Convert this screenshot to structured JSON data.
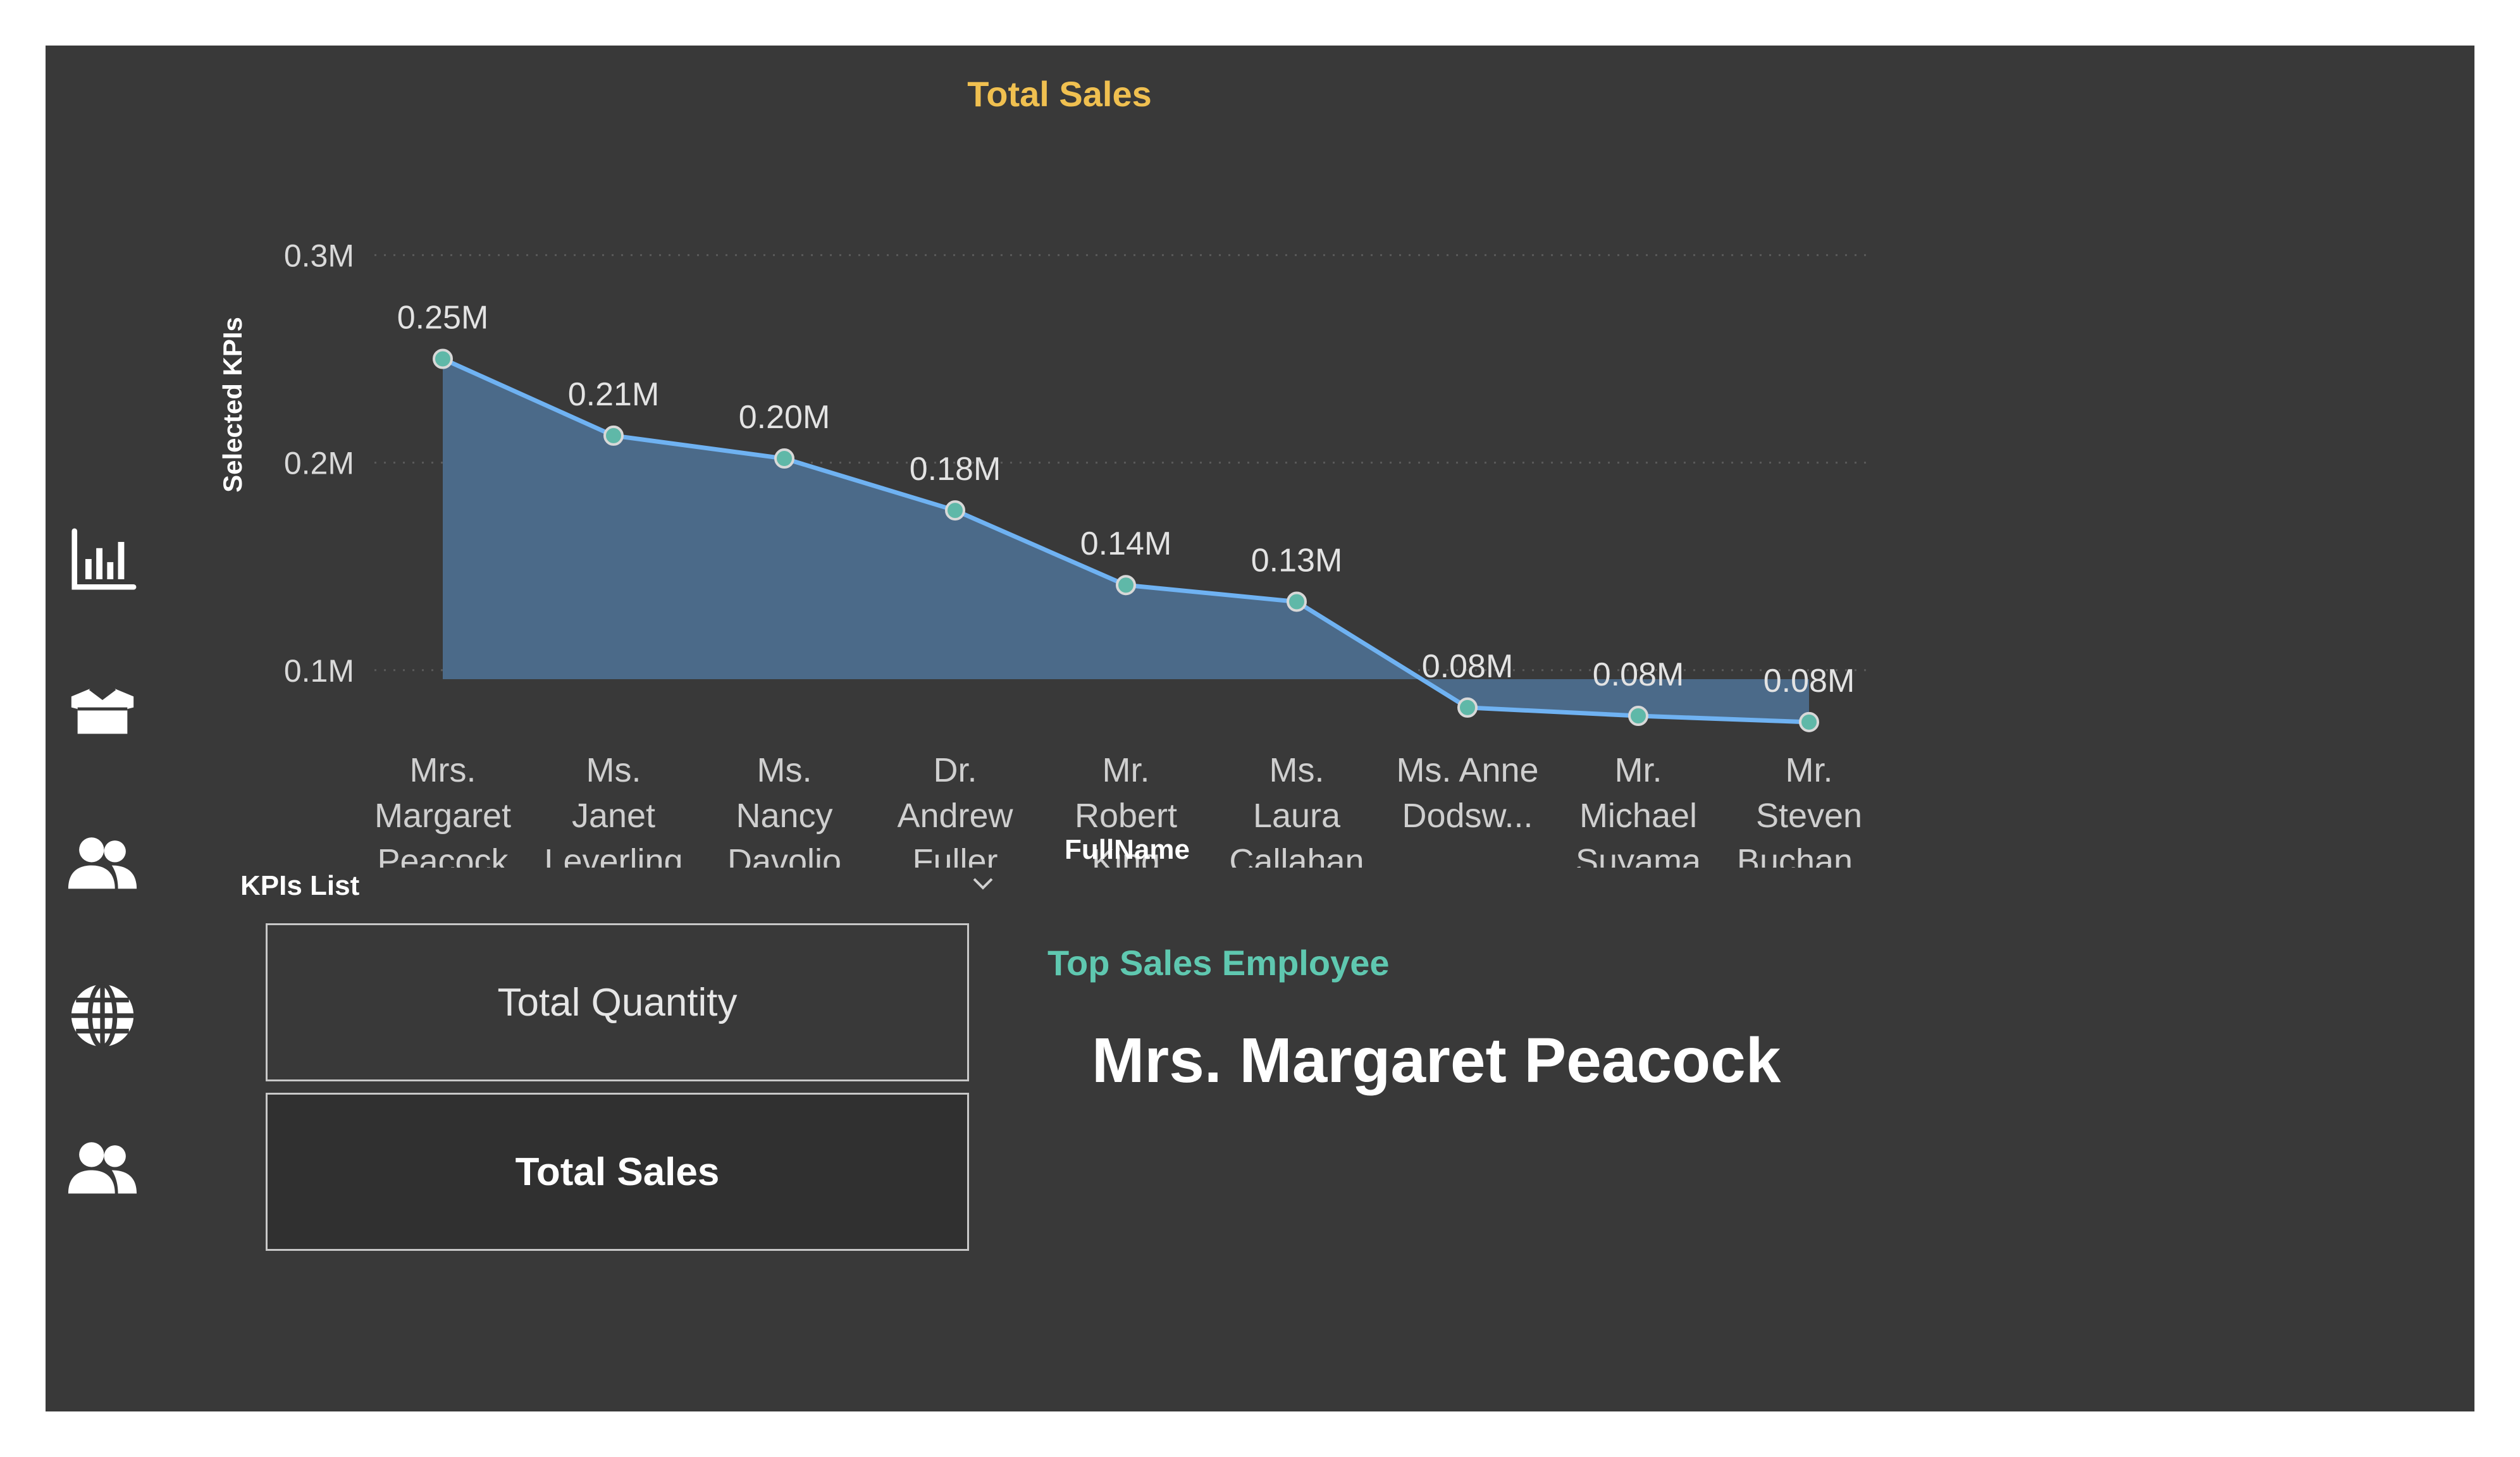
{
  "nav": {
    "items": [
      {
        "icon": "bar-chart-icon"
      },
      {
        "icon": "box-icon"
      },
      {
        "icon": "users-icon"
      },
      {
        "icon": "globe-icon"
      },
      {
        "icon": "users-icon"
      }
    ]
  },
  "colors": {
    "background": "#393939",
    "chart_title": "#f0c050",
    "line": "#6fb2f2",
    "area": "#4b6a89",
    "marker": "#5fb8a8",
    "accent_teal": "#5fc8b0"
  },
  "chart_data": {
    "type": "area",
    "title": "Total Sales",
    "xlabel": "FullName",
    "ylabel": "Selected KPIs",
    "ylim": [
      0.05,
      0.3
    ],
    "yticks": [
      0.1,
      0.2,
      0.3
    ],
    "ytick_labels": [
      "0.1M",
      "0.2M",
      "0.3M"
    ],
    "grid": true,
    "categories": [
      "Mrs. Margaret Peacock",
      "Ms. Janet Leverling",
      "Ms. Nancy Davolio",
      "Dr. Andrew Fuller",
      "Mr. Robert King",
      "Ms. Laura Callahan",
      "Ms. Anne Dodsw...",
      "Mr. Michael Suyama",
      "Mr. Steven Buchan..."
    ],
    "category_lines": [
      [
        "Mrs.",
        "Margaret",
        "Peacock"
      ],
      [
        "Ms.",
        "Janet",
        "Leverling"
      ],
      [
        "Ms.",
        "Nancy",
        "Davolio"
      ],
      [
        "Dr.",
        "Andrew",
        "Fuller"
      ],
      [
        "Mr.",
        "Robert",
        "King"
      ],
      [
        "Ms.",
        "Laura",
        "Callahan"
      ],
      [
        "Ms. Anne",
        "Dodsw..."
      ],
      [
        "Mr.",
        "Michael",
        "Suyama"
      ],
      [
        "Mr.",
        "Steven",
        "Buchan..."
      ]
    ],
    "values": [
      0.25,
      0.213,
      0.202,
      0.177,
      0.141,
      0.133,
      0.082,
      0.078,
      0.075
    ],
    "data_labels": [
      "0.25M",
      "0.21M",
      "0.20M",
      "0.18M",
      "0.14M",
      "0.13M",
      "0.08M",
      "0.08M",
      "0.08M"
    ]
  },
  "kpis": {
    "header": "KPIs List",
    "items": [
      {
        "label": "Total Quantity",
        "selected": false
      },
      {
        "label": "Total Sales",
        "selected": true
      }
    ]
  },
  "top_employee": {
    "title": "Top Sales Employee",
    "name": "Mrs. Margaret Peacock"
  }
}
